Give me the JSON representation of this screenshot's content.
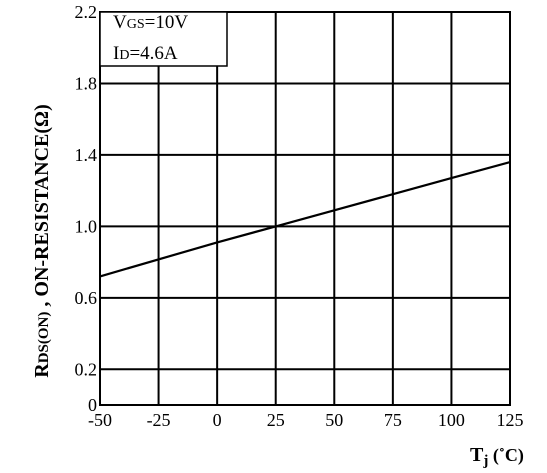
{
  "chart_data": {
    "type": "line",
    "xlabel": {
      "main": "T",
      "sub": "j",
      "unit": " (˚C)"
    },
    "ylabel": {
      "r": "R",
      "sub": "DS(ON)",
      "rest": " , ON-RESISTANCE(Ω)"
    },
    "xlim": [
      -50,
      125
    ],
    "ylim": [
      0,
      2.2
    ],
    "x_ticks": [
      -50,
      -25,
      0,
      25,
      50,
      75,
      100,
      125
    ],
    "y_ticks": [
      0,
      0.2,
      0.6,
      1.0,
      1.4,
      1.8,
      2.2
    ],
    "x_tick_labels": [
      "-50",
      "-25",
      "0",
      "25",
      "50",
      "75",
      "100",
      "125"
    ],
    "y_tick_labels": [
      "0",
      "0.2",
      "0.6",
      "1.0",
      "1.4",
      "1.8",
      "2.2"
    ],
    "grid": true,
    "annotations": {
      "vgs": {
        "prefix": "V",
        "sub": "GS",
        "suffix": "=10V"
      },
      "id": {
        "prefix": "I",
        "sub": "D",
        "suffix": "=4.6A"
      }
    },
    "series": [
      {
        "x": [
          -50,
          0,
          25,
          50,
          75,
          100,
          125
        ],
        "y": [
          0.72,
          0.91,
          1.0,
          1.09,
          1.18,
          1.27,
          1.36
        ]
      }
    ]
  }
}
